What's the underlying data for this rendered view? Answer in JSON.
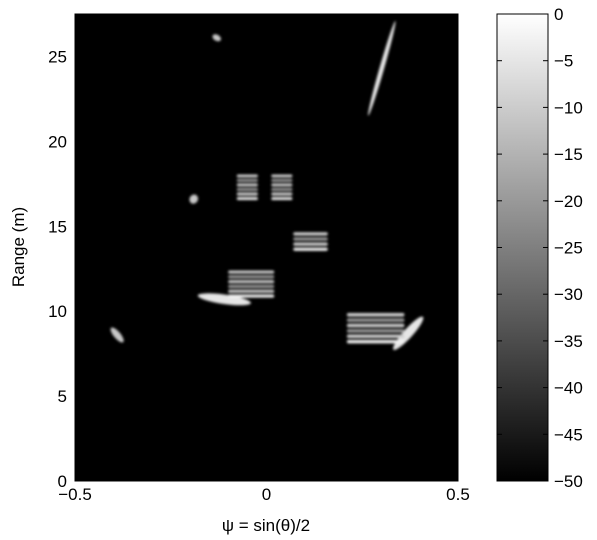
{
  "chart_data": {
    "type": "heatmap",
    "title": "",
    "xlabel": "ψ = sin(θ)/2",
    "ylabel": "Range (m)",
    "xlim": [
      -0.5,
      0.5
    ],
    "ylim": [
      0,
      27.5
    ],
    "xticks": [
      {
        "value": -0.5,
        "label": "−0.5"
      },
      {
        "value": 0,
        "label": "0"
      },
      {
        "value": 0.5,
        "label": "0.5"
      }
    ],
    "yticks": [
      {
        "value": 0,
        "label": "0"
      },
      {
        "value": 5,
        "label": "5"
      },
      {
        "value": 10,
        "label": "10"
      },
      {
        "value": 15,
        "label": "15"
      },
      {
        "value": 20,
        "label": "20"
      },
      {
        "value": 25,
        "label": "25"
      }
    ],
    "colormap": "gray",
    "background_color": "#000000",
    "colorbar": {
      "range": [
        -50,
        0
      ],
      "ticks": [
        {
          "value": 0,
          "label": "0"
        },
        {
          "value": -5,
          "label": "−5"
        },
        {
          "value": -10,
          "label": "−10"
        },
        {
          "value": -15,
          "label": "−15"
        },
        {
          "value": -20,
          "label": "−20"
        },
        {
          "value": -25,
          "label": "−25"
        },
        {
          "value": -30,
          "label": "−30"
        },
        {
          "value": -35,
          "label": "−35"
        },
        {
          "value": -40,
          "label": "−40"
        },
        {
          "value": -45,
          "label": "−45"
        },
        {
          "value": -50,
          "label": "−50"
        }
      ]
    },
    "targets": [
      {
        "x": -0.13,
        "y": 26.1,
        "rx": 0.012,
        "ry": 0.18,
        "angle": 30,
        "kind": "blob"
      },
      {
        "x": -0.39,
        "y": 8.6,
        "rx": 0.009,
        "ry": 0.55,
        "angle": -40,
        "kind": "blob"
      },
      {
        "x": -0.19,
        "y": 16.6,
        "rx": 0.011,
        "ry": 0.28,
        "angle": 30,
        "kind": "blob"
      },
      {
        "x": 0.301,
        "y": 24.3,
        "rx": 0.006,
        "ry": 2.9,
        "angle": 16,
        "kind": "arc"
      },
      {
        "x": -0.11,
        "y": 10.7,
        "rx": 0.07,
        "ry": 0.28,
        "angle": 8,
        "kind": "streak"
      },
      {
        "x": 0.37,
        "y": 8.7,
        "rx": 0.012,
        "ry": 1.3,
        "angle": 42,
        "kind": "streak"
      },
      {
        "x": -0.05,
        "y": 17.3,
        "rows": 6,
        "w": 0.055,
        "h": 1.6,
        "kind": "stack"
      },
      {
        "x": 0.04,
        "y": 17.3,
        "rows": 6,
        "w": 0.055,
        "h": 1.6,
        "kind": "stack"
      },
      {
        "x": -0.04,
        "y": 11.6,
        "rows": 6,
        "w": 0.12,
        "h": 1.7,
        "kind": "stack"
      },
      {
        "x": 0.115,
        "y": 14.1,
        "rows": 4,
        "w": 0.09,
        "h": 1.2,
        "kind": "stack"
      },
      {
        "x": 0.285,
        "y": 9.0,
        "rows": 6,
        "w": 0.15,
        "h": 1.9,
        "kind": "stack"
      }
    ]
  }
}
